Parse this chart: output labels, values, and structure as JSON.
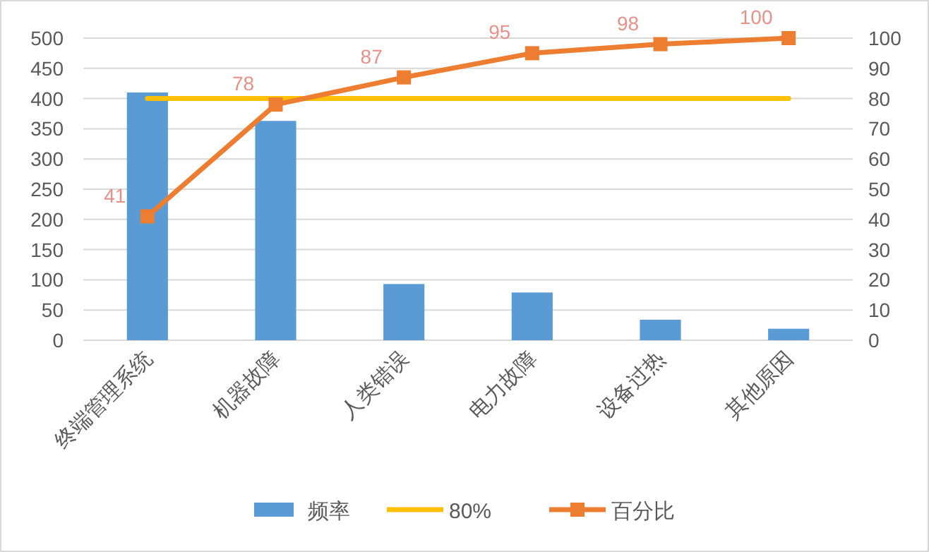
{
  "chart_data": {
    "type": "bar",
    "categories": [
      "终端管理系统",
      "机器故障",
      "人类错误",
      "电力故障",
      "设备过热",
      "其他原因"
    ],
    "series": [
      {
        "name": "频率",
        "type": "bar",
        "color": "#5b9bd5",
        "values": [
          410,
          363,
          93,
          79,
          34,
          19
        ]
      },
      {
        "name": "80%",
        "type": "line",
        "axis": "y2",
        "color": "#ffc000",
        "marker": "none",
        "values": [
          80,
          80,
          80,
          80,
          80,
          80
        ]
      },
      {
        "name": "百分比",
        "type": "line",
        "axis": "y2",
        "color": "#ed7d31",
        "marker": "square",
        "values": [
          41,
          78,
          87,
          95,
          98,
          100
        ],
        "value_labels": [
          "41",
          "78",
          "87",
          "95",
          "98",
          "100"
        ]
      }
    ],
    "ylim": [
      0,
      500
    ],
    "yticks": [
      0,
      50,
      100,
      150,
      200,
      250,
      300,
      350,
      400,
      450,
      500
    ],
    "y2lim": [
      0,
      100
    ],
    "y2ticks": [
      0,
      10,
      20,
      30,
      40,
      50,
      60,
      70,
      80,
      90,
      100
    ],
    "grid": "y",
    "legend": "bottom"
  }
}
